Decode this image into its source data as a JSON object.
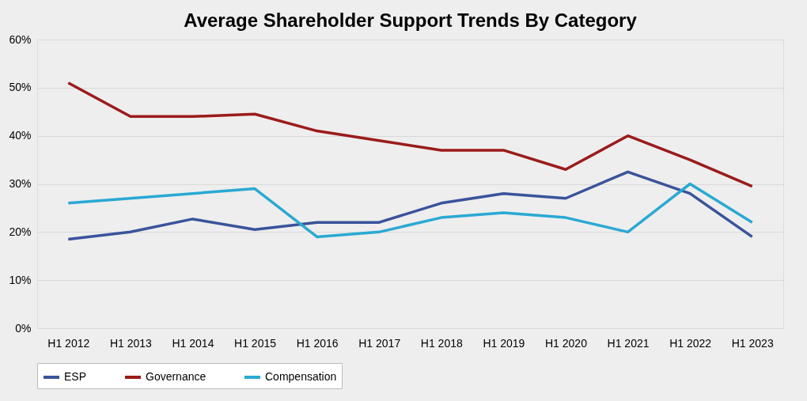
{
  "chart_data": {
    "type": "line",
    "title": "Average Shareholder Support Trends By Category",
    "categories": [
      "H1 2012",
      "H1 2013",
      "H1 2014",
      "H1 2015",
      "H1 2016",
      "H1 2017",
      "H1 2018",
      "H1 2019",
      "H1 2020",
      "H1 2021",
      "H1 2022",
      "H1 2023"
    ],
    "series": [
      {
        "name": "ESP",
        "color": "#3a539b",
        "values": [
          18.5,
          20,
          22.7,
          20.5,
          22,
          22,
          26,
          28,
          27,
          32.5,
          28,
          19
        ]
      },
      {
        "name": "Governance",
        "color": "#9b1b1b",
        "values": [
          51,
          44,
          44,
          44.5,
          41,
          39,
          37,
          37,
          33,
          40,
          35,
          29.5
        ]
      },
      {
        "name": "Compensation",
        "color": "#2aa9d2",
        "values": [
          26,
          27,
          28,
          29,
          19,
          20,
          23,
          24,
          23,
          20,
          30,
          22
        ]
      }
    ],
    "ylim": [
      0,
      60
    ],
    "yticks": [
      {
        "value": 0,
        "label": "0%"
      },
      {
        "value": 10,
        "label": "10%"
      },
      {
        "value": 20,
        "label": "20%"
      },
      {
        "value": 30,
        "label": "30%"
      },
      {
        "value": 40,
        "label": "40%"
      },
      {
        "value": 50,
        "label": "50%"
      },
      {
        "value": 60,
        "label": "60%"
      }
    ],
    "grid": "y",
    "legend": "bottom",
    "marker": "none",
    "line_style": "solid"
  }
}
